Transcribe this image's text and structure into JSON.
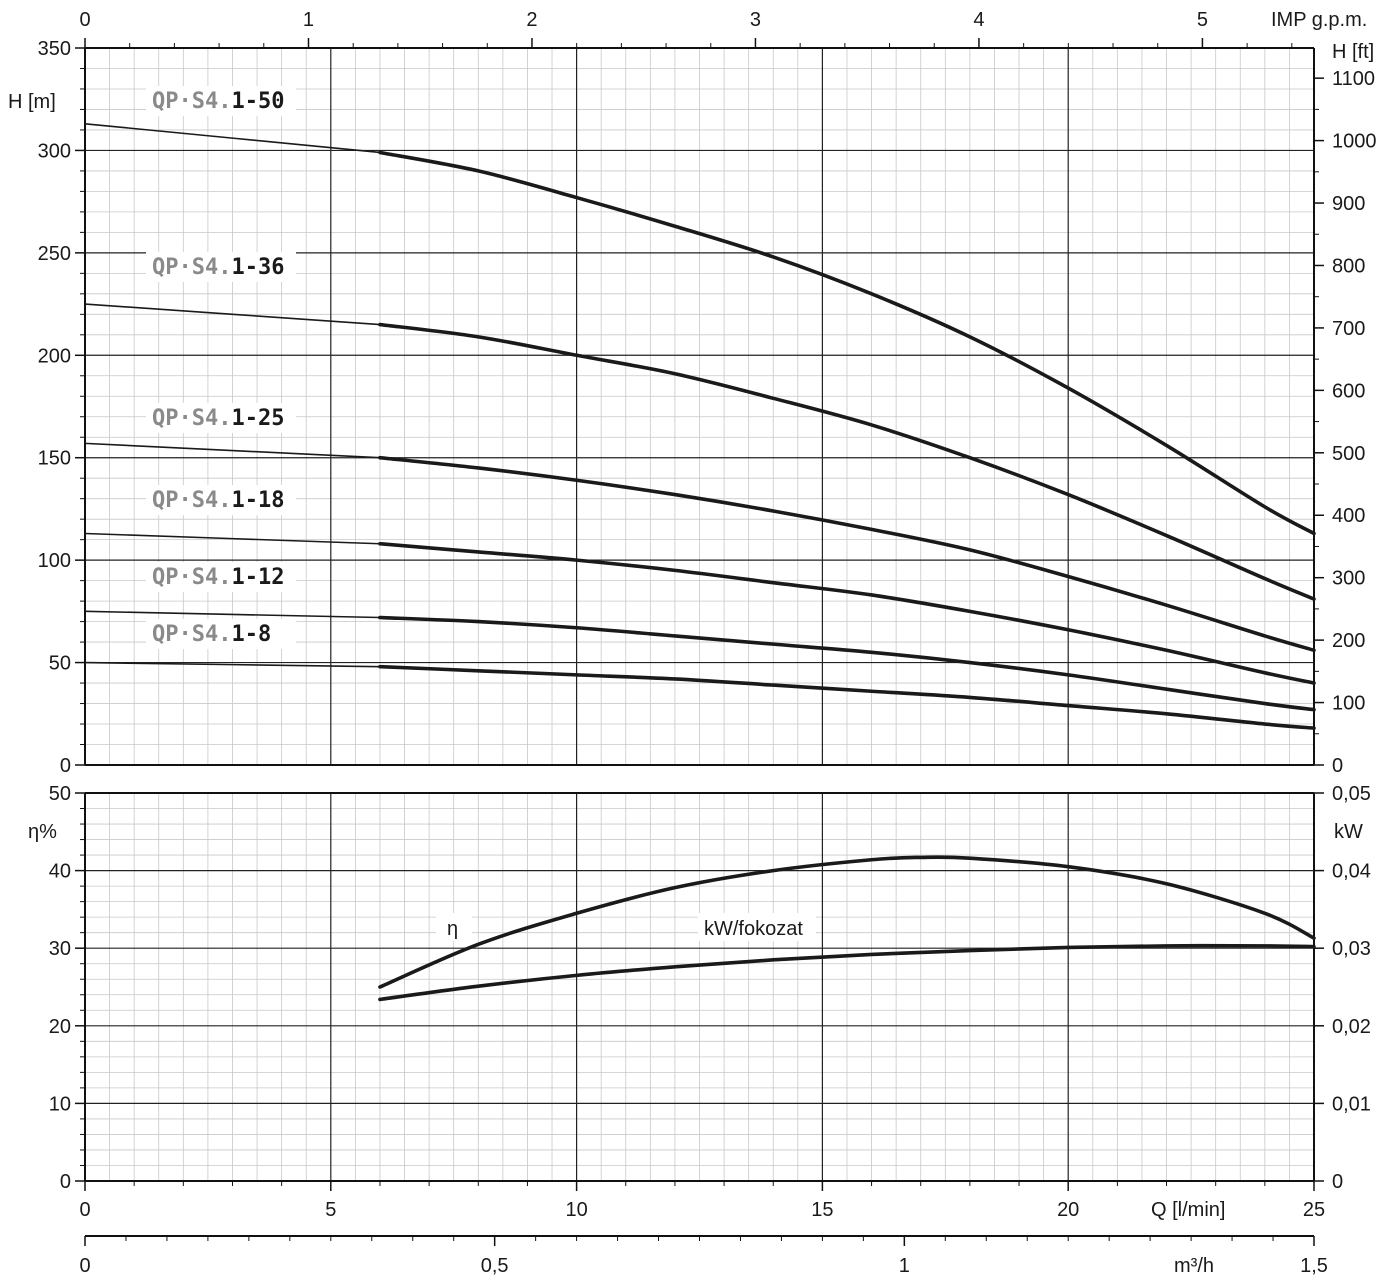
{
  "chart_data": [
    {
      "type": "line",
      "title": "",
      "xlabel": "Q [l/min]",
      "ylabel": "H [m]",
      "ylabel_right": "H [ft]",
      "xlabel_top": "IMP g.p.m.",
      "xlabel_bottom2": "m³/h",
      "xlim": [
        0,
        25
      ],
      "ylim": [
        0,
        350
      ],
      "ylim_right": [
        0,
        1148.3
      ],
      "grid": true,
      "x_ticks": [
        "0",
        "5",
        "10",
        "15",
        "20",
        "25"
      ],
      "y_ticks": [
        "0",
        "50",
        "100",
        "150",
        "200",
        "250",
        "300",
        "350"
      ],
      "right_ticks": [
        "0",
        "100",
        "200",
        "300",
        "400",
        "500",
        "600",
        "700",
        "800",
        "900",
        "1000",
        "1100"
      ],
      "top_ticks": [
        "0",
        "1",
        "2",
        "3",
        "4",
        "5"
      ],
      "bottom2_ticks": [
        "0",
        "0,5",
        "1",
        "1,5"
      ],
      "series": [
        {
          "name": "QP·S4.1-50",
          "label_prefix": "QP·S4.",
          "label_suffix": "1-50",
          "x": [
            0,
            6,
            8,
            10,
            12,
            14,
            16,
            18,
            20,
            22,
            24,
            25
          ],
          "y": [
            313,
            299,
            290,
            277,
            263,
            248,
            230,
            209,
            184,
            156,
            126,
            113
          ]
        },
        {
          "name": "QP·S4.1-36",
          "label_prefix": "QP·S4.",
          "label_suffix": "1-36",
          "x": [
            0,
            6,
            8,
            10,
            12,
            14,
            16,
            18,
            20,
            22,
            24,
            25
          ],
          "y": [
            225,
            215,
            209,
            200,
            191,
            179,
            166,
            150,
            132,
            112,
            91,
            81
          ]
        },
        {
          "name": "QP·S4.1-25",
          "label_prefix": "QP·S4.",
          "label_suffix": "1-25",
          "x": [
            0,
            6,
            8,
            10,
            12,
            14,
            16,
            18,
            20,
            22,
            24,
            25
          ],
          "y": [
            157,
            150,
            145,
            139,
            132,
            124,
            115,
            105,
            92,
            78,
            63,
            56
          ]
        },
        {
          "name": "QP·S4.1-18",
          "label_prefix": "QP·S4.",
          "label_suffix": "1-18",
          "x": [
            0,
            6,
            8,
            10,
            12,
            14,
            16,
            18,
            20,
            22,
            24,
            25
          ],
          "y": [
            113,
            108,
            104,
            100,
            95,
            89,
            83,
            75,
            66,
            56,
            45,
            40
          ]
        },
        {
          "name": "QP·S4.1-12",
          "label_prefix": "QP·S4.",
          "label_suffix": "1-12",
          "x": [
            0,
            6,
            8,
            10,
            12,
            14,
            16,
            18,
            20,
            22,
            24,
            25
          ],
          "y": [
            75,
            72,
            70,
            67,
            63,
            59,
            55,
            50,
            44,
            37,
            30,
            27
          ]
        },
        {
          "name": "QP·S4.1-8",
          "label_prefix": "QP·S4.",
          "label_suffix": "1-8",
          "x": [
            0,
            6,
            8,
            10,
            12,
            14,
            16,
            18,
            20,
            22,
            24,
            25
          ],
          "y": [
            50,
            48,
            46,
            44,
            42,
            39,
            36,
            33,
            29,
            25,
            20,
            18
          ]
        }
      ]
    },
    {
      "type": "line",
      "title": "",
      "xlabel": "Q [l/min]",
      "ylabel": "η%",
      "ylabel_right": "kW",
      "xlim": [
        0,
        25
      ],
      "ylim": [
        0,
        50
      ],
      "ylim_right": [
        0,
        0.05
      ],
      "grid": true,
      "y_ticks": [
        "0",
        "10",
        "20",
        "30",
        "40",
        "50"
      ],
      "right_ticks": [
        "0",
        "0,01",
        "0,02",
        "0,03",
        "0,04",
        "0,05"
      ],
      "series": [
        {
          "name": "η",
          "axis": "left",
          "x": [
            6,
            8,
            10,
            12,
            14,
            16,
            17,
            18,
            20,
            22,
            24,
            25
          ],
          "y": [
            25,
            30.5,
            34.5,
            37.8,
            40,
            41.4,
            41.7,
            41.6,
            40.5,
            38.3,
            34.5,
            31.3
          ]
        },
        {
          "name": "kW/fokozat",
          "axis": "right",
          "x": [
            6,
            8,
            10,
            12,
            14,
            16,
            18,
            20,
            22,
            24,
            25
          ],
          "y": [
            0.0234,
            0.0251,
            0.0265,
            0.0276,
            0.0285,
            0.0292,
            0.0297,
            0.0301,
            0.0303,
            0.0303,
            0.0302
          ]
        }
      ]
    }
  ]
}
